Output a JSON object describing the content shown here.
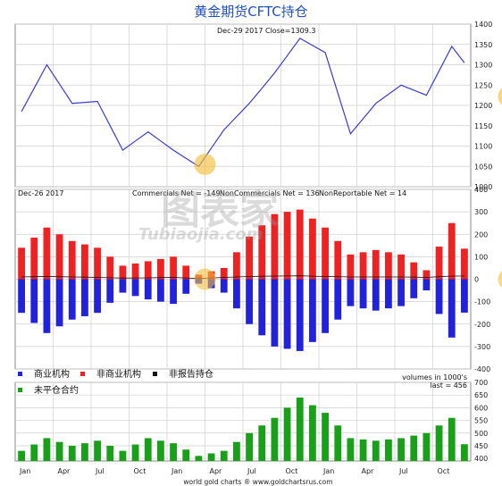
{
  "title": "黄金期货CFTC持仓",
  "footer": "world gold charts ® www.goldchartsrus.com",
  "watermark": {
    "cn": "图表家",
    "en": "Tubiaojia.com"
  },
  "colors": {
    "gold_line": "#3a3ad6",
    "commercials": "#2222dd",
    "noncommercials": "#ee2222",
    "nonreportable": "#111111",
    "open_interest": "#18a018",
    "highlight": "#f2c040",
    "title": "#2050c0"
  },
  "months": [
    "Jan",
    "Apr",
    "Jul",
    "Oct",
    "Jan",
    "Apr",
    "Jul",
    "Oct",
    "Jan",
    "Apr",
    "Jul",
    "Oct"
  ],
  "chart_data": [
    {
      "type": "line",
      "name": "gold",
      "annotation": "Dec-29  2017   Close=1309.3",
      "ylim": [
        1000,
        1400
      ],
      "yticks": [
        "1400",
        "1350",
        "1300",
        "1250",
        "1200",
        "1150",
        "1100",
        "1050",
        "1000"
      ],
      "x": [
        0,
        2,
        4,
        6,
        8,
        10,
        12,
        14,
        16,
        18,
        20,
        22,
        24,
        26,
        28,
        30,
        32,
        34,
        35
      ],
      "y": [
        1185,
        1300,
        1205,
        1210,
        1090,
        1135,
        1090,
        1050,
        1140,
        1205,
        1280,
        1365,
        1330,
        1130,
        1205,
        1250,
        1225,
        1345,
        1305
      ],
      "highlights": [
        {
          "x": 14.5,
          "y": 1055
        },
        {
          "x": 38.5,
          "y": 1222
        }
      ]
    },
    {
      "type": "bar",
      "name": "cftc_net",
      "annotation_date": "Dec-26  2017",
      "annotations": [
        "Commercials Net = -149",
        "NonCommercials Net = 136",
        "NonReportable Net = 14"
      ],
      "ylim": [
        -400,
        400
      ],
      "yticks": [
        "400",
        "300",
        "200",
        "100",
        "0",
        "-100",
        "-200",
        "-300",
        "-400"
      ],
      "x": [
        0,
        2,
        4,
        6,
        8,
        10,
        12,
        14,
        16,
        18,
        20,
        22,
        24,
        26,
        28,
        30,
        32,
        34,
        35
      ],
      "commercials": [
        -150,
        -240,
        -180,
        -150,
        -60,
        -90,
        -110,
        -20,
        -60,
        -200,
        -300,
        -320,
        -240,
        -120,
        -140,
        -120,
        -50,
        -260,
        -149
      ],
      "noncommercials": [
        140,
        230,
        170,
        140,
        60,
        80,
        100,
        20,
        50,
        190,
        290,
        310,
        230,
        110,
        130,
        110,
        40,
        250,
        136
      ],
      "nonreportable": [
        10,
        12,
        10,
        8,
        5,
        6,
        8,
        3,
        8,
        12,
        14,
        15,
        12,
        10,
        10,
        10,
        8,
        14,
        14
      ],
      "highlights": [
        {
          "x": 14.5,
          "y": 0
        },
        {
          "x": 38.5,
          "y": 0
        }
      ],
      "legend": [
        "商业机构",
        "非商业机构",
        "非报告持仓",
        "未平仓合约"
      ]
    },
    {
      "type": "bar",
      "name": "open_interest",
      "annotation_units": "volumes in 1000's",
      "annotation_last": "last = 456",
      "ylim": [
        390,
        700
      ],
      "yticks": [
        "700",
        "650",
        "600",
        "550",
        "500",
        "450",
        "400"
      ],
      "x": [
        0,
        2,
        4,
        6,
        8,
        10,
        12,
        14,
        16,
        18,
        20,
        22,
        24,
        26,
        28,
        30,
        32,
        34,
        35
      ],
      "values": [
        430,
        480,
        450,
        470,
        430,
        480,
        460,
        410,
        430,
        500,
        560,
        640,
        580,
        480,
        470,
        480,
        500,
        560,
        456
      ]
    }
  ]
}
